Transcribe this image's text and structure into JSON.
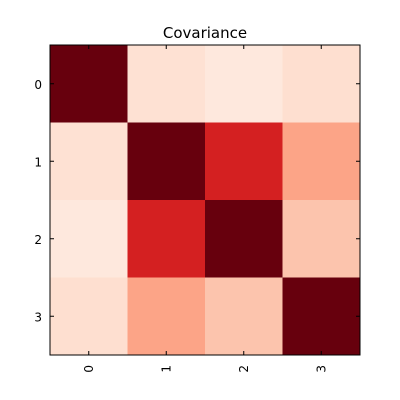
{
  "chart_data": {
    "type": "heatmap",
    "title": "Covariance",
    "x_categories": [
      "0",
      "1",
      "2",
      "3"
    ],
    "y_categories": [
      "0",
      "1",
      "2",
      "3"
    ],
    "x_tick_rotation": "vertical",
    "colormap": "Reds",
    "color_min": "#fff5f0",
    "color_max": "#67000d",
    "values": [
      [
        1.0,
        0.12,
        0.08,
        0.13
      ],
      [
        0.12,
        1.0,
        0.72,
        0.32
      ],
      [
        0.08,
        0.72,
        1.0,
        0.22
      ],
      [
        0.13,
        0.32,
        0.22,
        1.0
      ]
    ],
    "vmin": 0.0,
    "vmax": 1.0,
    "grid": false,
    "legend": "none"
  }
}
